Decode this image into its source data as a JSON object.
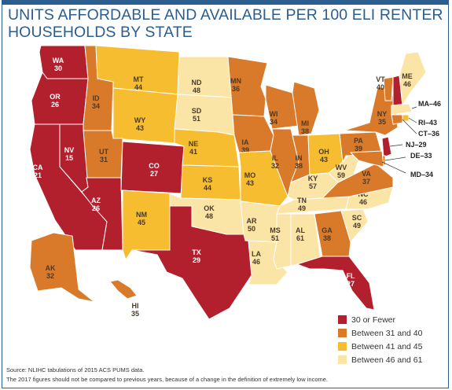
{
  "title_lines": [
    "UNITS AFFORDABLE AND AVAILABLE PER 100 ELI RENTER",
    "HOUSEHOLDS BY STATE"
  ],
  "colors": {
    "cat1": "#b2202e",
    "cat2": "#d97a2b",
    "cat3": "#f5bd2f",
    "cat4": "#fbe5a6"
  },
  "legend": [
    {
      "label": "30 or Fewer",
      "color": "#b2202e"
    },
    {
      "label": "Between 31 and 40",
      "color": "#d97a2b"
    },
    {
      "label": "Between 41 and 45",
      "color": "#f5bd2f"
    },
    {
      "label": "Between 46 and 61",
      "color": "#fbe5a6"
    }
  ],
  "states": [
    {
      "abbr": "WA",
      "value": "30"
    },
    {
      "abbr": "OR",
      "value": "26"
    },
    {
      "abbr": "CA",
      "value": "21"
    },
    {
      "abbr": "NV",
      "value": "15"
    },
    {
      "abbr": "ID",
      "value": "34"
    },
    {
      "abbr": "MT",
      "value": "44"
    },
    {
      "abbr": "WY",
      "value": "43"
    },
    {
      "abbr": "UT",
      "value": "31"
    },
    {
      "abbr": "AZ",
      "value": "26"
    },
    {
      "abbr": "CO",
      "value": "27"
    },
    {
      "abbr": "NM",
      "value": "45"
    },
    {
      "abbr": "ND",
      "value": "48"
    },
    {
      "abbr": "SD",
      "value": "51"
    },
    {
      "abbr": "NE",
      "value": "41"
    },
    {
      "abbr": "KS",
      "value": "44"
    },
    {
      "abbr": "OK",
      "value": "48"
    },
    {
      "abbr": "TX",
      "value": "29"
    },
    {
      "abbr": "MN",
      "value": "36"
    },
    {
      "abbr": "IA",
      "value": "39"
    },
    {
      "abbr": "MO",
      "value": "43"
    },
    {
      "abbr": "AR",
      "value": "50"
    },
    {
      "abbr": "LA",
      "value": "46"
    },
    {
      "abbr": "WI",
      "value": "34"
    },
    {
      "abbr": "IL",
      "value": "32"
    },
    {
      "abbr": "MI",
      "value": "38"
    },
    {
      "abbr": "IN",
      "value": "38"
    },
    {
      "abbr": "OH",
      "value": "43"
    },
    {
      "abbr": "KY",
      "value": "57"
    },
    {
      "abbr": "TN",
      "value": "49"
    },
    {
      "abbr": "MS",
      "value": "51"
    },
    {
      "abbr": "AL",
      "value": "61"
    },
    {
      "abbr": "GA",
      "value": "38"
    },
    {
      "abbr": "FL",
      "value": "27"
    },
    {
      "abbr": "SC",
      "value": "49"
    },
    {
      "abbr": "NC",
      "value": "46"
    },
    {
      "abbr": "VA",
      "value": "37"
    },
    {
      "abbr": "WV",
      "value": "59"
    },
    {
      "abbr": "PA",
      "value": "39"
    },
    {
      "abbr": "NY",
      "value": "35"
    },
    {
      "abbr": "VT",
      "value": "40"
    },
    {
      "abbr": "NH",
      "value": "30"
    },
    {
      "abbr": "ME",
      "value": "46"
    },
    {
      "abbr": "MA",
      "value": "46"
    },
    {
      "abbr": "RI",
      "value": "43"
    },
    {
      "abbr": "CT",
      "value": "36"
    },
    {
      "abbr": "NJ",
      "value": "29"
    },
    {
      "abbr": "DE",
      "value": "33"
    },
    {
      "abbr": "MD",
      "value": "34"
    },
    {
      "abbr": "AK",
      "value": "32"
    },
    {
      "abbr": "HI",
      "value": "35"
    }
  ],
  "footnote_source": "Source: NLIHC tabulations of 2015 ACS PUMS data.",
  "footnote_note": "The 2017 figures should not be compared to previous years, because of a change in the definition of extremely low income."
}
